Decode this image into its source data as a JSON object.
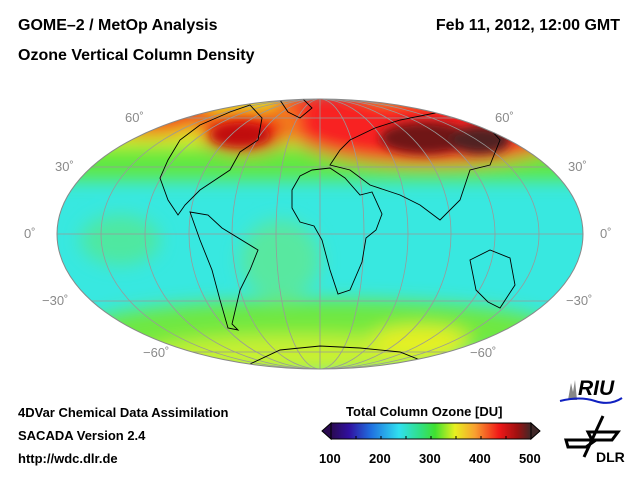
{
  "header": {
    "title_line1": "GOME–2 / MetOp Analysis",
    "title_line2": "Ozone Vertical Column Density",
    "datetime": "Feb 11, 2012, 12:00 GMT"
  },
  "map": {
    "projection": "Mollweide",
    "lat_labels_left": [
      "60˚",
      "30˚",
      "0˚",
      "−30˚",
      "−60˚"
    ],
    "lat_labels_right": [
      "60˚",
      "30˚",
      "0˚",
      "−30˚",
      "−60˚"
    ]
  },
  "footer": {
    "line1": "4DVar Chemical Data Assimilation",
    "line2": "SACADA Version 2.4",
    "line3": "http://wdc.dlr.de"
  },
  "colorbar": {
    "title": "Total Column Ozone [DU]",
    "ticks": [
      "100",
      "200",
      "300",
      "400",
      "500"
    ],
    "range": [
      100,
      500
    ],
    "colors": [
      "#2a0a50",
      "#3010a0",
      "#2060e0",
      "#30c8f0",
      "#30f0d0",
      "#30e040",
      "#b0f020",
      "#f8f020",
      "#f8a030",
      "#f82020",
      "#c01010",
      "#402020"
    ]
  },
  "logos": {
    "riu": "RIU",
    "dlr": "DLR"
  }
}
